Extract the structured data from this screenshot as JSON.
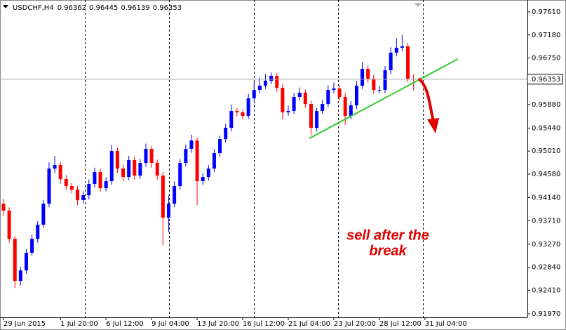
{
  "chart_data": {
    "type": "candlestick",
    "symbol": "USDCHF,H4",
    "annotation": [
      "sell after the",
      "break"
    ],
    "up_color": "#0000ff",
    "down_color": "#ff0000",
    "trendline": {
      "x": [
        53.7,
        79.8
      ],
      "y": [
        0.95248,
        0.96731
      ],
      "color": "#33cc33"
    },
    "categories": [
      "29 Jun 2015",
      null,
      null,
      null,
      null,
      null,
      null,
      null,
      null,
      null,
      "1 Jul 20:00",
      null,
      null,
      null,
      null,
      null,
      null,
      null,
      "6 Jul 12:00",
      null,
      null,
      null,
      null,
      null,
      null,
      null,
      "9 Jul 04:00",
      null,
      null,
      null,
      null,
      null,
      null,
      null,
      "13 Jul 20:00",
      null,
      null,
      null,
      null,
      null,
      null,
      null,
      "16 Jul 12:00",
      null,
      null,
      null,
      null,
      null,
      null,
      null,
      "21 Jul 04:00",
      null,
      null,
      null,
      null,
      null,
      null,
      null,
      "23 Jul 20:00",
      null,
      null,
      null,
      null,
      null,
      null,
      null,
      "28 Jul 12:00",
      null,
      null,
      null,
      null,
      null,
      null,
      null,
      "31 Jul 04:00"
    ],
    "open": [
      0.94028,
      0.93897,
      0.93372,
      0.92585,
      0.92782,
      0.9311,
      0.93372,
      0.93635,
      0.94028,
      0.94684,
      0.9475,
      0.94487,
      0.94356,
      0.94291,
      0.94094,
      0.94186,
      0.94396,
      0.94619,
      0.94317,
      0.94448,
      0.95012,
      0.94684,
      0.94527,
      0.94842,
      0.94553,
      0.94789,
      0.95052,
      0.94789,
      0.94553,
      0.93766,
      0.94028,
      0.94356,
      0.94789,
      0.95052,
      0.95209,
      0.94448,
      0.94527,
      0.94684,
      0.94973,
      0.95235,
      0.95445,
      0.9576,
      0.95734,
      0.95668,
      0.95996,
      0.96154,
      0.96232,
      0.96324,
      0.96416,
      0.96193,
      0.95734,
      0.9576,
      0.96022,
      0.96101,
      0.95891,
      0.95445,
      0.9576,
      0.95891,
      0.96154,
      0.9618,
      0.96022,
      0.95668,
      0.95865,
      0.96232,
      0.96547,
      0.96364,
      0.96154,
      0.96154,
      0.96521,
      0.96849,
      0.96941,
      0.96967,
      0.96362,
      null,
      null
    ],
    "high": [
      0.9412,
      0.9396,
      0.9342,
      0.9285,
      0.9318,
      0.9345,
      0.937,
      0.941,
      0.948,
      0.9492,
      0.9481,
      0.9456,
      0.9442,
      0.9435,
      0.9426,
      0.9448,
      0.947,
      0.9468,
      0.9452,
      0.9513,
      0.9508,
      0.9476,
      0.9492,
      0.949,
      0.9486,
      0.9515,
      0.9511,
      0.9485,
      0.9462,
      0.9418,
      0.9444,
      0.9486,
      0.9513,
      0.9532,
      0.9526,
      0.946,
      0.9475,
      0.9505,
      0.953,
      0.9552,
      0.9588,
      0.9582,
      0.9579,
      0.9608,
      0.963,
      0.9638,
      0.9645,
      0.9648,
      0.9647,
      0.9626,
      0.9586,
      0.961,
      0.962,
      0.9616,
      0.9595,
      0.9582,
      0.9597,
      0.9624,
      0.9629,
      0.9624,
      0.961,
      0.9595,
      0.9632,
      0.9668,
      0.9661,
      0.9644,
      0.9623,
      0.966,
      0.9695,
      0.9712,
      0.9718,
      0.9703,
      0.96445,
      null,
      null
    ],
    "low": [
      0.938,
      0.933,
      0.9245,
      0.925,
      0.9272,
      0.9305,
      0.933,
      0.9358,
      0.9396,
      0.946,
      0.944,
      0.9428,
      0.9422,
      0.94,
      0.9403,
      0.9411,
      0.9433,
      0.9425,
      0.9426,
      0.9438,
      0.946,
      0.9445,
      0.9447,
      0.9448,
      0.9449,
      0.9472,
      0.947,
      0.9448,
      0.9325,
      0.935,
      0.9396,
      0.9429,
      0.9472,
      0.9498,
      0.94,
      0.9438,
      0.9446,
      0.9462,
      0.949,
      0.9517,
      0.9538,
      0.9566,
      0.956,
      0.9561,
      0.9593,
      0.9609,
      0.9617,
      0.9626,
      0.9612,
      0.956,
      0.9567,
      0.957,
      0.9596,
      0.9582,
      0.953,
      0.9538,
      0.957,
      0.9583,
      0.9609,
      0.9595,
      0.955,
      0.956,
      0.958,
      0.9617,
      0.9629,
      0.9608,
      0.9609,
      0.9609,
      0.9645,
      0.9678,
      0.9687,
      0.963,
      0.96139,
      null,
      null
    ],
    "close": [
      0.93897,
      0.93372,
      0.92585,
      0.92782,
      0.9311,
      0.93372,
      0.93635,
      0.94028,
      0.94684,
      0.9475,
      0.94487,
      0.94356,
      0.94291,
      0.94094,
      0.94186,
      0.94396,
      0.94619,
      0.94317,
      0.94448,
      0.95012,
      0.94684,
      0.94527,
      0.94842,
      0.94553,
      0.94789,
      0.95052,
      0.94789,
      0.94553,
      0.93766,
      0.94028,
      0.94356,
      0.94789,
      0.95052,
      0.95209,
      0.94448,
      0.94527,
      0.94684,
      0.94973,
      0.95235,
      0.95445,
      0.9576,
      0.95734,
      0.95668,
      0.95996,
      0.96154,
      0.96232,
      0.96324,
      0.96416,
      0.96193,
      0.95734,
      0.9576,
      0.96022,
      0.96101,
      0.95891,
      0.95445,
      0.9576,
      0.95891,
      0.96154,
      0.9618,
      0.96022,
      0.95668,
      0.95865,
      0.96232,
      0.96547,
      0.96364,
      0.96154,
      0.96154,
      0.96521,
      0.96849,
      0.96941,
      0.96967,
      0.96362,
      0.96353,
      null,
      null
    ],
    "ylim": [
      0.91904,
      0.97833
    ],
    "yticks": [
      {
        "value": 0.9761,
        "label": "0.97610"
      },
      {
        "value": 0.9718,
        "label": "0.97180"
      },
      {
        "value": 0.9675,
        "label": "0.96750"
      },
      {
        "value": 0.9588,
        "label": "0.95880"
      },
      {
        "value": 0.9544,
        "label": "0.95440"
      },
      {
        "value": 0.9501,
        "label": "0.95010"
      },
      {
        "value": 0.9458,
        "label": "0.94580"
      },
      {
        "value": 0.9414,
        "label": "0.94140"
      },
      {
        "value": 0.9371,
        "label": "0.93710"
      },
      {
        "value": 0.9327,
        "label": "0.93270"
      },
      {
        "value": 0.9284,
        "label": "0.92840"
      },
      {
        "value": 0.9241,
        "label": "0.92410"
      },
      {
        "value": 0.9197,
        "label": "0.91970"
      }
    ]
  }
}
